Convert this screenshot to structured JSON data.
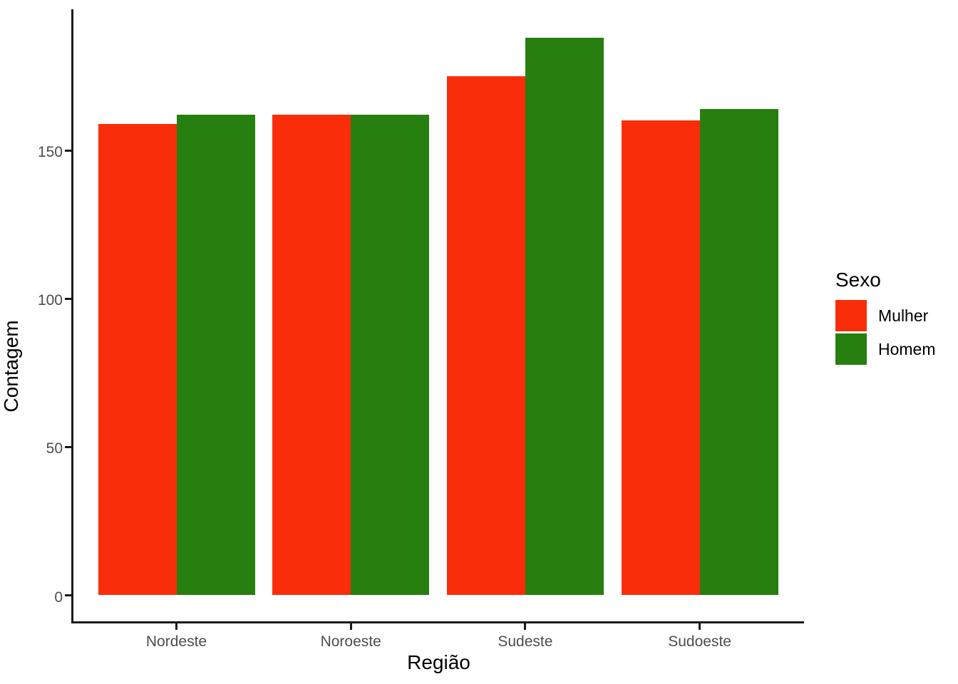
{
  "chart_data": {
    "type": "bar",
    "title": "",
    "categories": [
      "Nordeste",
      "Noroeste",
      "Sudeste",
      "Sudoeste"
    ],
    "series": [
      {
        "name": "Mulher",
        "color": "#fa2d0a",
        "values": [
          159,
          162,
          175,
          160
        ]
      },
      {
        "name": "Homem",
        "color": "#267f0e",
        "values": [
          162,
          162,
          188,
          164
        ]
      }
    ],
    "xlabel": "Região",
    "ylabel": "Contagem",
    "ylim": [
      0,
      197
    ],
    "yticks": [
      0,
      50,
      100,
      150
    ],
    "ytick_labels": [
      "0",
      "50",
      "100",
      "150"
    ],
    "legend_title": "Sexo",
    "legend_position": "right",
    "grid": false,
    "bar_layout": "dodged",
    "colors": {
      "axis_line": "#1a1a1a",
      "tick_label": "#4d4d4d",
      "axis_title": "#000000"
    }
  }
}
